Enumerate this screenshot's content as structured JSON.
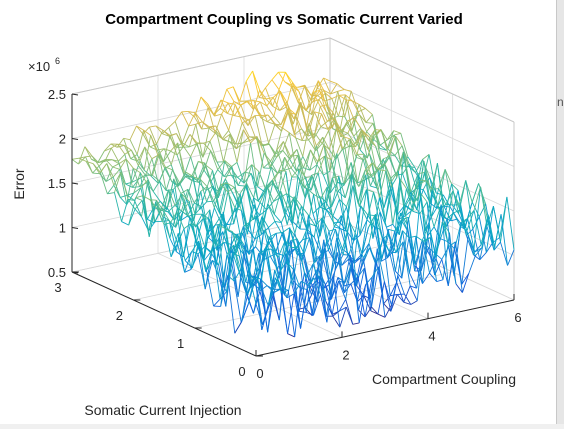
{
  "chart_data": {
    "type": "surface-mesh",
    "title": "Compartment Coupling vs Somatic Current Varied",
    "xlabel": "Compartment Coupling",
    "ylabel": "Somatic Current Injection",
    "zlabel": "Error",
    "z_exponent_label": "×10",
    "z_exponent_power": "6",
    "xlim": [
      0,
      6
    ],
    "ylim": [
      0,
      3
    ],
    "zlim": [
      0.5,
      2.5
    ],
    "x_ticks": [
      "0",
      "2",
      "4",
      "6"
    ],
    "y_ticks": [
      "0",
      "1",
      "2",
      "3"
    ],
    "z_ticks": [
      "0.5",
      "1",
      "1.5",
      "2",
      "2.5"
    ],
    "grid": true,
    "colormap": [
      "#352a87",
      "#0f5cdd",
      "#1481d6",
      "#06a4ca",
      "#2eb7a4",
      "#87bf77",
      "#d1bb59",
      "#fec832",
      "#f9fb0e"
    ],
    "surface_description_samples": {
      "x_corners": [
        0,
        6
      ],
      "y_corners": [
        0,
        3
      ],
      "z_values_millions": {
        "high_region_x4_y3": 2.3,
        "mid_edge_x0_y3": 1.85,
        "low_region_x3_y0": 0.9,
        "far_corner_x6_y0": 1.55
      }
    }
  },
  "side_panel": {
    "glyph": "ni"
  }
}
